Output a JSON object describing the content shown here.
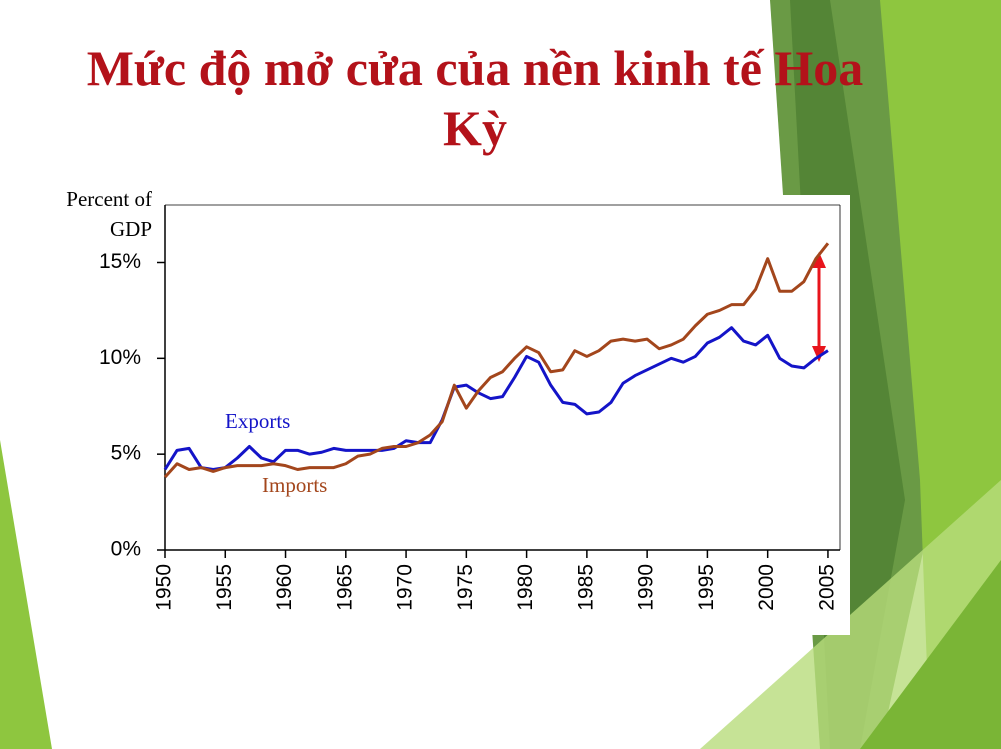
{
  "chart_data": {
    "type": "line",
    "title": "Mức độ mở cửa của nền kinh tế Hoa Kỳ",
    "ylabel": [
      "Percent of",
      "GDP"
    ],
    "x": [
      1950,
      1951,
      1952,
      1953,
      1954,
      1955,
      1956,
      1957,
      1958,
      1959,
      1960,
      1961,
      1962,
      1963,
      1964,
      1965,
      1966,
      1967,
      1968,
      1969,
      1970,
      1971,
      1972,
      1973,
      1974,
      1975,
      1976,
      1977,
      1978,
      1979,
      1980,
      1981,
      1982,
      1983,
      1984,
      1985,
      1986,
      1987,
      1988,
      1989,
      1990,
      1991,
      1992,
      1993,
      1994,
      1995,
      1996,
      1997,
      1998,
      1999,
      2000,
      2001,
      2002,
      2003,
      2004,
      2005
    ],
    "series": [
      {
        "name": "Exports",
        "color": "#1414c8",
        "values": [
          4.2,
          5.2,
          5.3,
          4.3,
          4.2,
          4.3,
          4.8,
          5.4,
          4.8,
          4.6,
          5.2,
          5.2,
          5.0,
          5.1,
          5.3,
          5.2,
          5.2,
          5.2,
          5.2,
          5.3,
          5.7,
          5.6,
          5.6,
          6.8,
          8.5,
          8.6,
          8.2,
          7.9,
          8.0,
          9.0,
          10.1,
          9.8,
          8.6,
          7.7,
          7.6,
          7.1,
          7.2,
          7.7,
          8.7,
          9.1,
          9.4,
          9.7,
          10.0,
          9.8,
          10.1,
          10.8,
          11.1,
          11.6,
          10.9,
          10.7,
          11.2,
          10.0,
          9.6,
          9.5,
          10.0,
          10.4
        ]
      },
      {
        "name": "Imports",
        "color": "#a3461c",
        "values": [
          3.8,
          4.5,
          4.2,
          4.3,
          4.1,
          4.3,
          4.4,
          4.4,
          4.4,
          4.5,
          4.4,
          4.2,
          4.3,
          4.3,
          4.3,
          4.5,
          4.9,
          5.0,
          5.3,
          5.4,
          5.4,
          5.6,
          6.0,
          6.7,
          8.6,
          7.4,
          8.3,
          9.0,
          9.3,
          10.0,
          10.6,
          10.3,
          9.3,
          9.4,
          10.4,
          10.1,
          10.4,
          10.9,
          11.0,
          10.9,
          11.0,
          10.5,
          10.7,
          11.0,
          11.7,
          12.3,
          12.5,
          12.8,
          12.8,
          13.6,
          15.2,
          13.5,
          13.5,
          14.0,
          15.2,
          16.0
        ]
      }
    ],
    "xlim": [
      1950,
      2006
    ],
    "xticks": [
      1950,
      1955,
      1960,
      1965,
      1970,
      1975,
      1980,
      1985,
      1990,
      1995,
      2000,
      2005
    ],
    "ylim": [
      0,
      18
    ],
    "yticks": [
      {
        "value": 0,
        "label": "0%"
      },
      {
        "value": 5,
        "label": "5%"
      },
      {
        "value": 10,
        "label": "10%"
      },
      {
        "value": 15,
        "label": "15%"
      }
    ],
    "grid": false
  }
}
